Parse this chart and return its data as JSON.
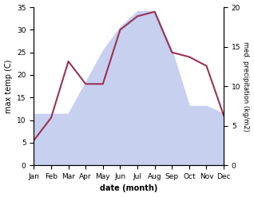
{
  "months": [
    "Jan",
    "Feb",
    "Mar",
    "Apr",
    "May",
    "Jun",
    "Jul",
    "Aug",
    "Sep",
    "Oct",
    "Nov",
    "Dec"
  ],
  "max_temp": [
    5.5,
    10.5,
    23.0,
    18.0,
    18.0,
    30.0,
    33.0,
    34.0,
    25.0,
    24.0,
    22.0,
    11.0
  ],
  "precipitation": [
    6.5,
    6.5,
    6.5,
    10.5,
    14.5,
    17.5,
    19.5,
    19.5,
    14.5,
    7.5,
    7.5,
    6.5
  ],
  "temp_color": "#993355",
  "precip_fill_color": "#c8d0f0",
  "ylabel_left": "max temp (C)",
  "ylabel_right": "med. precipitation (kg/m2)",
  "xlabel": "date (month)",
  "ylim_left": [
    0,
    35
  ],
  "ylim_right": [
    0,
    20
  ],
  "yticks_left": [
    0,
    5,
    10,
    15,
    20,
    25,
    30,
    35
  ],
  "yticks_right": [
    0,
    5,
    10,
    15,
    20
  ],
  "background_color": "#ffffff"
}
